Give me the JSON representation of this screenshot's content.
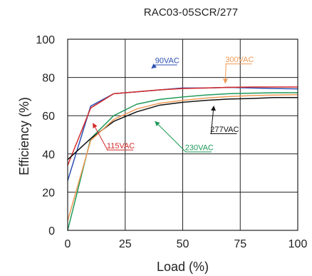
{
  "chart_data": {
    "type": "line",
    "title": "RAC03-05SCR/277",
    "xlabel": "Load (%)",
    "ylabel": "Efficiency (%)",
    "xlim": [
      0,
      100
    ],
    "ylim": [
      0,
      100
    ],
    "xticks": [
      0,
      25,
      50,
      75,
      100
    ],
    "yticks": [
      0,
      20,
      40,
      60,
      80,
      100
    ],
    "xtick_labels": [
      "0",
      "25",
      "50",
      "75",
      "100"
    ],
    "ytick_labels": [
      "0",
      "20",
      "40",
      "60",
      "80",
      "100"
    ],
    "grid": true,
    "legend": "none",
    "series": [
      {
        "name": "90VAC",
        "color": "#2b4fb3",
        "x": [
          0,
          10,
          20,
          30,
          40,
          50,
          60,
          70,
          80,
          90,
          100
        ],
        "y": [
          26,
          65,
          71.5,
          72.5,
          73.5,
          74.5,
          74.5,
          74.8,
          74.5,
          74.2,
          74
        ]
      },
      {
        "name": "115VAC",
        "color": "#d42a2a",
        "x": [
          0,
          10,
          20,
          30,
          40,
          50,
          60,
          70,
          80,
          90,
          100
        ],
        "y": [
          34,
          64,
          71.5,
          72.5,
          73.5,
          74.2,
          74.5,
          74.8,
          75,
          75,
          75
        ]
      },
      {
        "name": "230VAC",
        "color": "#1f9a5a",
        "x": [
          0,
          10,
          20,
          30,
          40,
          50,
          60,
          70,
          80,
          90,
          100
        ],
        "y": [
          0,
          48,
          60,
          66,
          68.5,
          69.8,
          70.8,
          71.5,
          71.8,
          72,
          72
        ]
      },
      {
        "name": "277VAC",
        "color": "#111111",
        "x": [
          0,
          10,
          20,
          30,
          40,
          50,
          60,
          70,
          80,
          90,
          100
        ],
        "y": [
          37,
          48,
          57,
          62,
          65.5,
          67,
          68,
          68.7,
          69,
          69.5,
          69.5
        ]
      },
      {
        "name": "300VAC",
        "color": "#f09a57",
        "x": [
          0,
          10,
          20,
          30,
          40,
          50,
          60,
          70,
          80,
          90,
          100
        ],
        "y": [
          5,
          47,
          58,
          63.5,
          66.5,
          68,
          69.2,
          70,
          70.5,
          70.8,
          71
        ]
      }
    ],
    "annotations": [
      {
        "text": "90VAC",
        "series": "90VAC",
        "color": "#2b4fb3",
        "x": 38,
        "y": 87.5,
        "arrow_to": [
          36.5,
          84.8
        ]
      },
      {
        "text": "300VAC",
        "series": "300VAC",
        "color": "#f09a57",
        "x": 68.5,
        "y": 88,
        "arrow_to": [
          68.5,
          77
        ]
      },
      {
        "text": "115VAC",
        "series": "115VAC",
        "color": "#d42a2a",
        "x": 17,
        "y": 43,
        "arrow_to": [
          11,
          56
        ]
      },
      {
        "text": "230VAC",
        "series": "230VAC",
        "color": "#1f9a5a",
        "x": 51,
        "y": 42,
        "arrow_to": [
          38,
          57
        ]
      },
      {
        "text": "277VAC",
        "series": "277VAC",
        "color": "#111111",
        "x": 62,
        "y": 51.5,
        "arrow_to": [
          63.5,
          65
        ]
      }
    ]
  }
}
